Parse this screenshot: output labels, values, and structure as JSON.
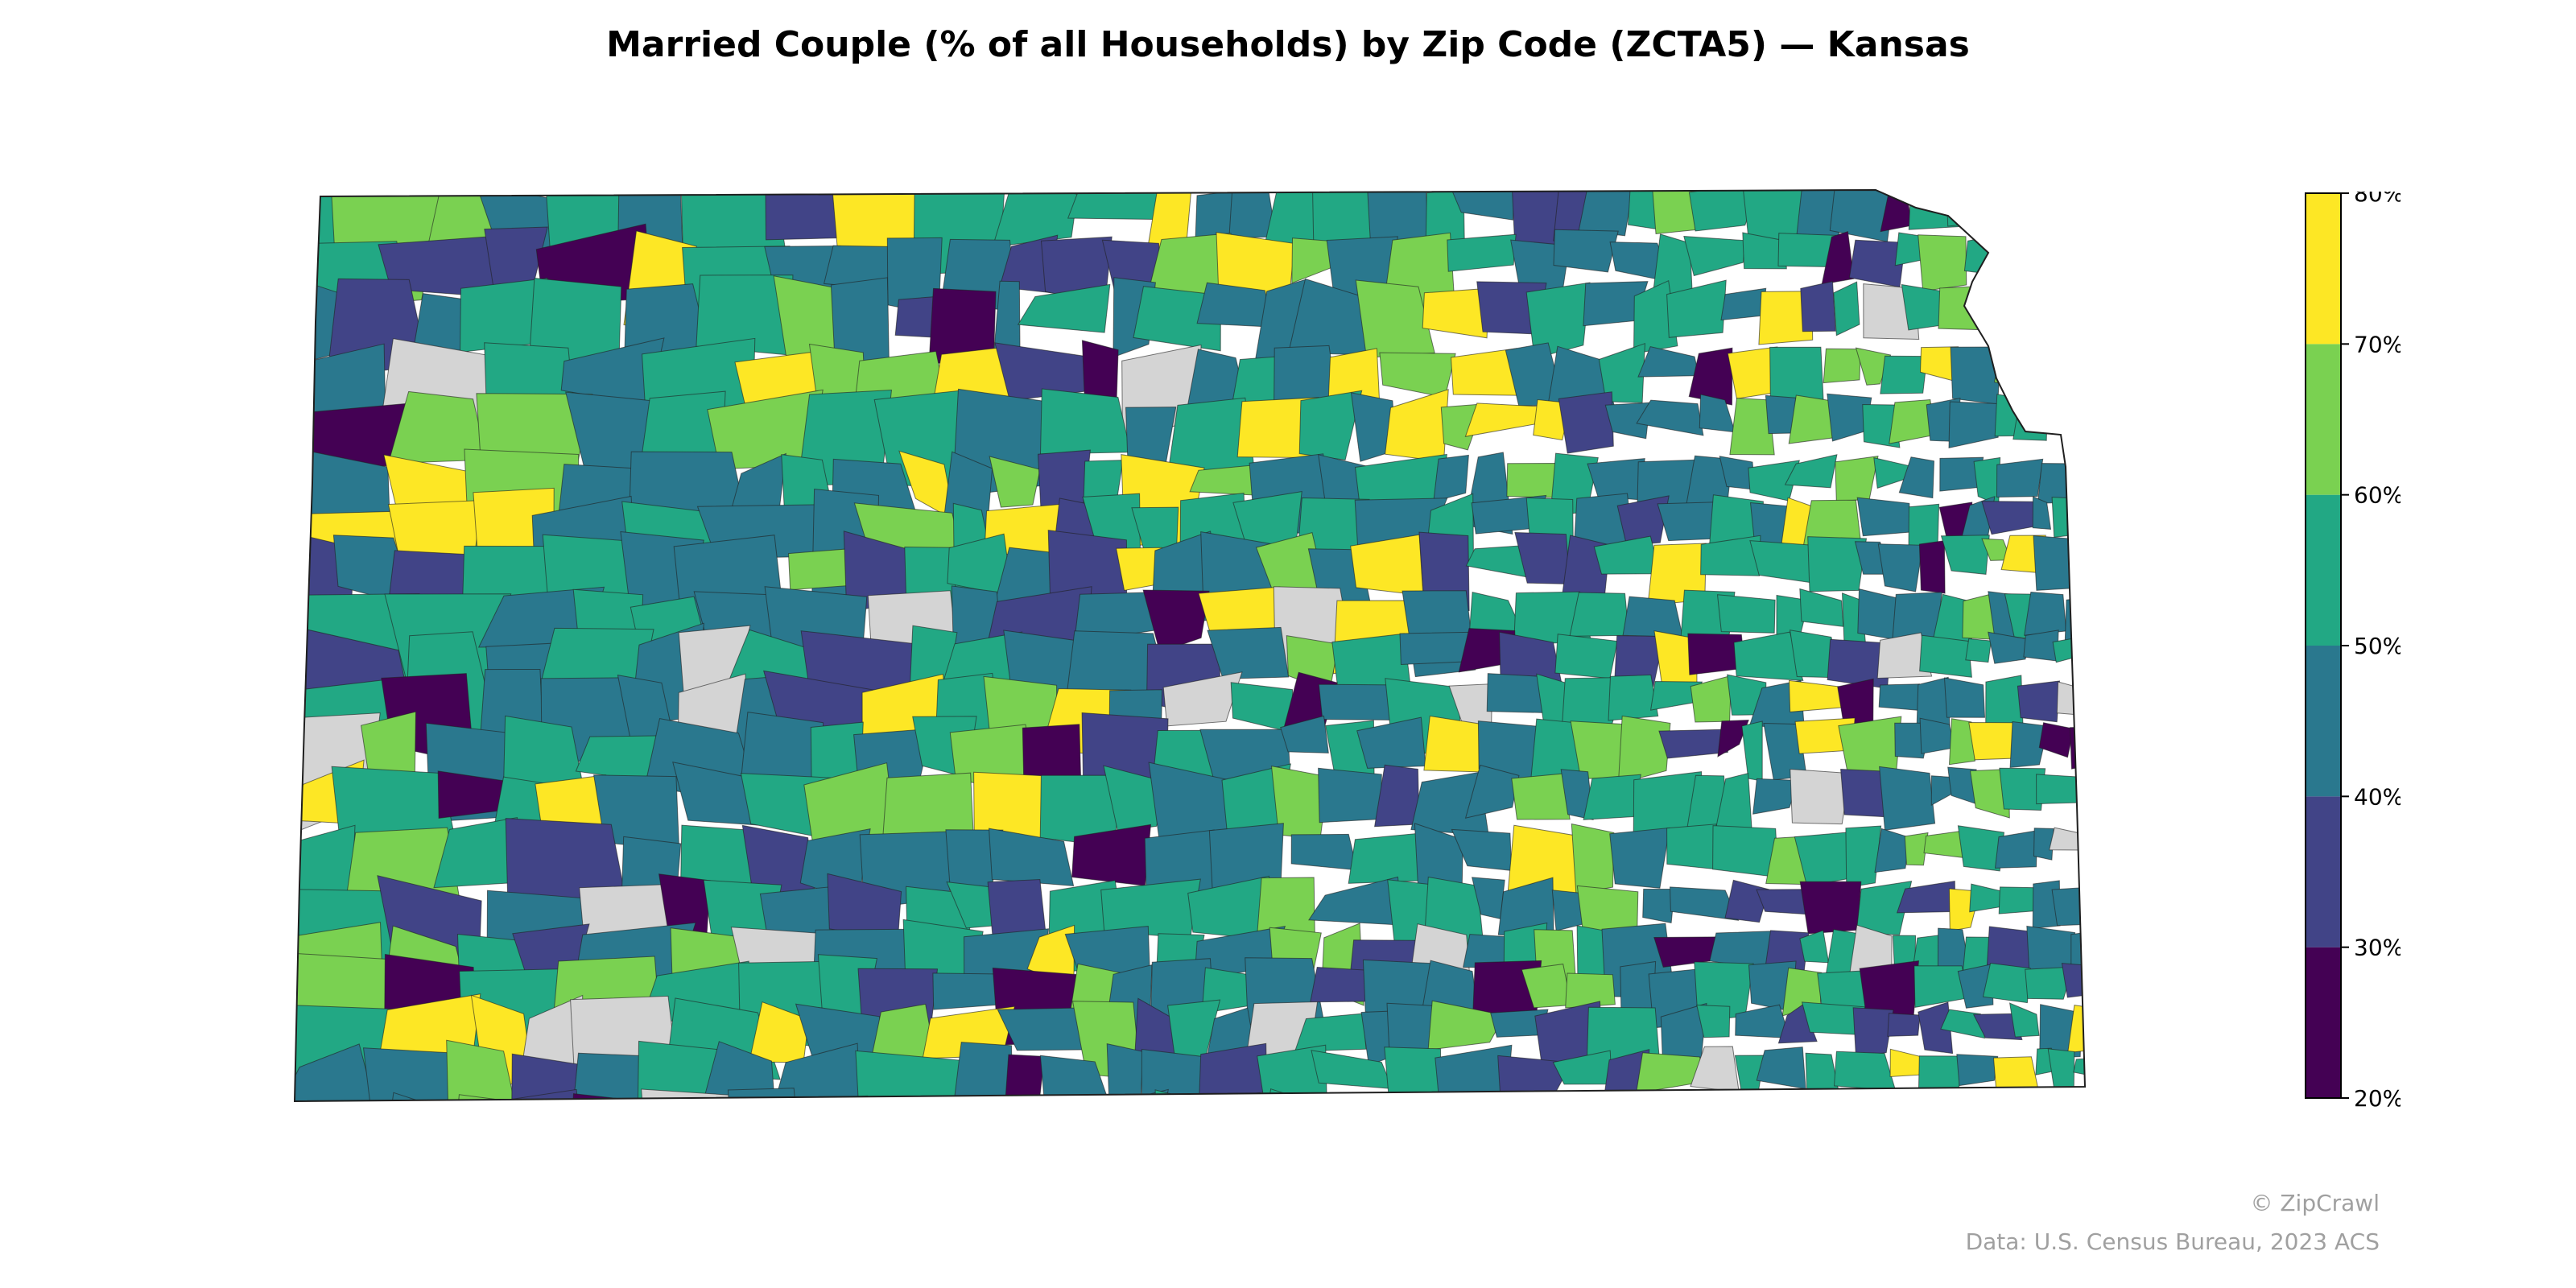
{
  "title": "Married Couple (% of all Households) by Zip Code (ZCTA5) — Kansas",
  "map": {
    "region": "Kansas",
    "no_data_color": "#d4d4d4",
    "border_color": "#1f1f1f"
  },
  "legend": {
    "type": "binned-colorbar",
    "placement": "right",
    "min": 20,
    "max": 80,
    "ticks": [
      "20%",
      "30%",
      "40%",
      "50%",
      "60%",
      "70%",
      "80%"
    ],
    "bins": [
      {
        "from": 20,
        "to": 30,
        "color": "#440154"
      },
      {
        "from": 30,
        "to": 40,
        "color": "#414487"
      },
      {
        "from": 40,
        "to": 50,
        "color": "#2a788e"
      },
      {
        "from": 50,
        "to": 60,
        "color": "#22a884"
      },
      {
        "from": 60,
        "to": 70,
        "color": "#7ad151"
      },
      {
        "from": 70,
        "to": 80,
        "color": "#fde725"
      }
    ]
  },
  "credits": {
    "brand": "© ZipCrawl",
    "source": "Data: U.S. Census Bureau, 2023 ACS"
  }
}
